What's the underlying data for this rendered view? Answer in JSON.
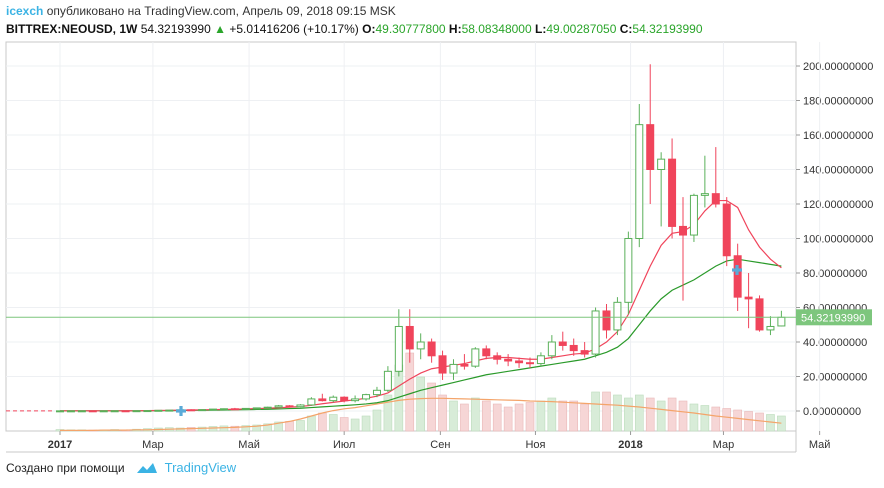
{
  "header": {
    "author": "icexch",
    "published_text": "опубликовано на TradingView.com, Апрель 09, 2018 09:15 MSK",
    "symbol": "BITTREX:NEOUSD, 1W",
    "last_price": "54.32193990",
    "change": "+5.01416206 (+10.17%)",
    "open_label": "O:",
    "open": "49.30777800",
    "high_label": "H:",
    "high": "58.08348000",
    "low_label": "L:",
    "low": "49.00287050",
    "close_label": "C:",
    "close": "54.32193990"
  },
  "colors": {
    "up": "#5ab05a",
    "down": "#f0445b",
    "ma_fast": "#f0445b",
    "ma_slow": "#2a9a2a",
    "volume_line": "#f4a46a",
    "price_tag": "#7dc67d",
    "marker": "#5aaad8"
  },
  "price_tag": "54.32193990",
  "footer": {
    "created_with": "Создано при помощи",
    "brand": "TradingView"
  },
  "chart_data": {
    "type": "candlestick",
    "y_ticks": [
      "200.00000000",
      "180.00000000",
      "160.00000000",
      "140.00000000",
      "120.00000000",
      "100.00000000",
      "80.00000000",
      "60.00000000",
      "40.00000000",
      "20.00000000",
      "0.00000000"
    ],
    "ylim": [
      -10,
      210
    ],
    "x_ticks": [
      {
        "label": "2017",
        "bold": true,
        "week": 0
      },
      {
        "label": "Мар",
        "bold": false,
        "week": 8.5
      },
      {
        "label": "Май",
        "bold": false,
        "week": 17.3
      },
      {
        "label": "Июл",
        "bold": false,
        "week": 26
      },
      {
        "label": "Сен",
        "bold": false,
        "week": 34.8
      },
      {
        "label": "Ноя",
        "bold": false,
        "week": 43.5
      },
      {
        "label": "2018",
        "bold": true,
        "week": 52.2
      },
      {
        "label": "Мар",
        "bold": false,
        "week": 60.7
      },
      {
        "label": "Май",
        "bold": false,
        "week": 69.5
      }
    ],
    "candles": [
      [
        0.1,
        0.1,
        0.1,
        0.1
      ],
      [
        0.1,
        0.1,
        0.1,
        0.1
      ],
      [
        0.1,
        0.12,
        0.1,
        0.12
      ],
      [
        0.12,
        0.13,
        0.1,
        0.11
      ],
      [
        0.11,
        0.13,
        0.1,
        0.12
      ],
      [
        0.12,
        0.15,
        0.11,
        0.14
      ],
      [
        0.14,
        0.16,
        0.12,
        0.13
      ],
      [
        0.13,
        0.2,
        0.12,
        0.18
      ],
      [
        0.18,
        0.3,
        0.15,
        0.25
      ],
      [
        0.25,
        0.5,
        0.2,
        0.4
      ],
      [
        0.4,
        0.6,
        0.3,
        0.5
      ],
      [
        0.5,
        0.8,
        0.4,
        0.7
      ],
      [
        0.7,
        1.0,
        0.5,
        0.6
      ],
      [
        0.6,
        0.9,
        0.5,
        0.8
      ],
      [
        0.8,
        1.2,
        0.7,
        1.1
      ],
      [
        1.1,
        1.5,
        0.9,
        1.3
      ],
      [
        1.3,
        1.8,
        1.0,
        1.2
      ],
      [
        1.2,
        1.6,
        1.0,
        1.5
      ],
      [
        1.5,
        2.0,
        1.2,
        1.8
      ],
      [
        1.8,
        2.5,
        1.5,
        2.2
      ],
      [
        2.2,
        3.5,
        2.0,
        3.0
      ],
      [
        3.0,
        3.4,
        2.0,
        2.5
      ],
      [
        2.5,
        4.0,
        2.2,
        3.5
      ],
      [
        3.5,
        8.0,
        3.0,
        7.0
      ],
      [
        7.0,
        10.0,
        5.5,
        6.0
      ],
      [
        6.0,
        9.0,
        5.0,
        8.0
      ],
      [
        8.0,
        8.5,
        5.0,
        6.0
      ],
      [
        6.0,
        9.0,
        5.0,
        7.0
      ],
      [
        7.0,
        10.0,
        6.0,
        9.5
      ],
      [
        9.5,
        14.0,
        8.0,
        12.0
      ],
      [
        12.0,
        26.0,
        11.0,
        23.0
      ],
      [
        23.0,
        59.0,
        20.0,
        49.0
      ],
      [
        49.0,
        59.0,
        28.0,
        36.0
      ],
      [
        36.0,
        45.0,
        30.0,
        40.0
      ],
      [
        40.0,
        42.0,
        28.0,
        32.0
      ],
      [
        32.0,
        35.0,
        18.0,
        22.0
      ],
      [
        22.0,
        30.0,
        18.0,
        27.0
      ],
      [
        27.0,
        33.0,
        24.0,
        26.0
      ],
      [
        26.0,
        37.0,
        25.0,
        36.0
      ],
      [
        36.0,
        38.0,
        30.0,
        32.0
      ],
      [
        32.0,
        34.0,
        27.0,
        30.0
      ],
      [
        30.0,
        33.0,
        26.0,
        29.0
      ],
      [
        29.0,
        31.0,
        25.0,
        28.0
      ],
      [
        28.0,
        31.0,
        25.0,
        27.5
      ],
      [
        27.5,
        34.0,
        26.0,
        32.0
      ],
      [
        32.0,
        44.0,
        30.0,
        40.0
      ],
      [
        40.0,
        46.0,
        35.0,
        38.0
      ],
      [
        38.0,
        42.0,
        32.0,
        35.0
      ],
      [
        35.0,
        40.0,
        31.0,
        33.0
      ],
      [
        33.0,
        60.0,
        31.0,
        58.0
      ],
      [
        58.0,
        62.0,
        42.0,
        47.0
      ],
      [
        47.0,
        66.0,
        44.0,
        63.0
      ],
      [
        63.0,
        104.0,
        56.0,
        100.0
      ],
      [
        100.0,
        178.0,
        95.0,
        166.0
      ],
      [
        166.0,
        201.0,
        120.0,
        140.0
      ],
      [
        140.0,
        150.0,
        107.0,
        146.0
      ],
      [
        146.0,
        158.0,
        100.0,
        107.0
      ],
      [
        107.0,
        124.0,
        64.0,
        102.0
      ],
      [
        102.0,
        126.0,
        98.0,
        125.0
      ],
      [
        125.0,
        148.0,
        118.0,
        126.0
      ],
      [
        126.0,
        153.0,
        118.0,
        120.0
      ],
      [
        120.0,
        124.0,
        84.0,
        90.0
      ],
      [
        90.0,
        97.0,
        58.0,
        66.0
      ],
      [
        66.0,
        80.0,
        48.0,
        65.0
      ],
      [
        65.0,
        67.0,
        46.0,
        47.0
      ],
      [
        47.0,
        55.0,
        44.0,
        49.0
      ],
      [
        49.3,
        58.1,
        49.0,
        54.3
      ]
    ],
    "ma_fast": [
      0.1,
      0.1,
      0.1,
      0.1,
      0.1,
      0.1,
      0.1,
      0.1,
      0.2,
      0.3,
      0.4,
      0.5,
      0.6,
      0.7,
      0.8,
      0.9,
      1.0,
      1.2,
      1.4,
      1.6,
      1.9,
      2.2,
      2.6,
      3.3,
      4.2,
      5.0,
      5.8,
      6.5,
      7.4,
      8.6,
      10.5,
      14.5,
      18.5,
      22.0,
      24.5,
      25.5,
      26.5,
      27.5,
      29.0,
      30.5,
      31.0,
      31.0,
      30.5,
      30.0,
      30.0,
      31.0,
      32.0,
      33.0,
      33.5,
      36.0,
      40.0,
      46.0,
      56.0,
      70.0,
      84.0,
      96.0,
      103.0,
      104.0,
      108.0,
      116.0,
      122.0,
      122.0,
      118.0,
      105.0,
      95.0,
      88.0,
      83.0
    ],
    "ma_slow": [
      0.1,
      0.1,
      0.1,
      0.1,
      0.1,
      0.1,
      0.1,
      0.1,
      0.1,
      0.2,
      0.2,
      0.3,
      0.4,
      0.4,
      0.5,
      0.6,
      0.7,
      0.8,
      0.9,
      1.0,
      1.2,
      1.4,
      1.6,
      2.0,
      2.4,
      2.8,
      3.2,
      3.6,
      4.1,
      4.8,
      6.0,
      8.0,
      10.0,
      12.0,
      13.5,
      15.0,
      16.5,
      18.0,
      19.5,
      21.0,
      22.0,
      23.0,
      24.0,
      25.0,
      26.0,
      27.0,
      28.0,
      29.0,
      30.0,
      32.0,
      34.0,
      37.0,
      42.0,
      50.0,
      58.0,
      65.0,
      70.0,
      73.0,
      76.0,
      80.0,
      84.0,
      87.0,
      88.0,
      87.0,
      86.0,
      85.0,
      84.0
    ],
    "volume": [
      0.5,
      0.4,
      0.4,
      0.3,
      0.4,
      0.5,
      0.4,
      0.6,
      0.8,
      1.0,
      1.1,
      1.0,
      1.2,
      1.3,
      1.5,
      1.7,
      1.6,
      1.8,
      2.0,
      2.4,
      3.0,
      3.2,
      3.5,
      5.0,
      6.0,
      5.5,
      4.5,
      4.0,
      5.0,
      7.0,
      12.0,
      22.0,
      26.0,
      18.0,
      16.0,
      12.0,
      10.0,
      9.0,
      11.0,
      10.0,
      9.0,
      8.0,
      9.0,
      9.5,
      10.0,
      11.0,
      10.0,
      10.0,
      9.0,
      13.0,
      13.0,
      12.0,
      11.0,
      12.0,
      11.0,
      10.0,
      11.0,
      10.0,
      9.0,
      8.5,
      8.0,
      7.5,
      7.0,
      6.5,
      6.0,
      5.5,
      5.0
    ],
    "volume_ma": [
      0.2,
      0.2,
      0.2,
      0.2,
      0.3,
      0.3,
      0.3,
      0.4,
      0.4,
      0.5,
      0.6,
      0.7,
      0.8,
      0.9,
      1.0,
      1.1,
      1.2,
      1.4,
      1.6,
      2.0,
      2.6,
      3.2,
      4.0,
      5.0,
      6.0,
      6.8,
      7.4,
      7.8,
      8.4,
      9.0,
      9.6,
      10.2,
      10.6,
      10.8,
      10.9,
      10.9,
      10.8,
      10.7,
      10.6,
      10.5,
      10.4,
      10.3,
      10.2,
      10.0,
      9.9,
      9.8,
      9.6,
      9.4,
      9.2,
      9.0,
      8.8,
      8.6,
      8.3,
      8.0,
      7.6,
      7.2,
      6.8,
      6.4,
      6.0,
      5.5,
      5.0,
      4.6,
      4.2,
      3.8,
      3.4,
      3.0,
      2.6
    ]
  }
}
